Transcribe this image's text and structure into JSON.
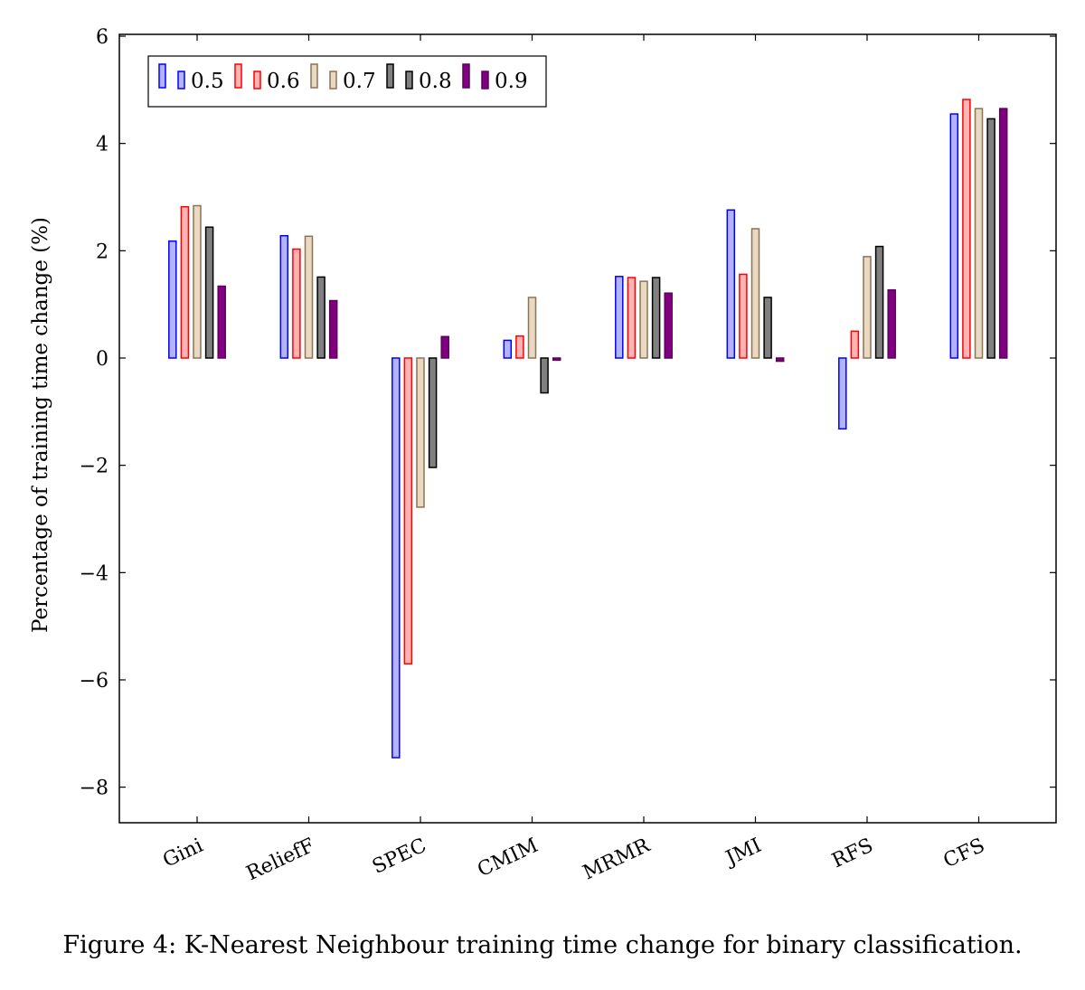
{
  "caption": "Figure 4: K-Nearest Neighbour training time change for binary classification.",
  "chart_data": {
    "type": "bar",
    "title": "",
    "xlabel": "",
    "ylabel": "Percentage of training time change (%)",
    "ylim": [
      -8.7,
      6
    ],
    "yticks": [
      -8,
      -6,
      -4,
      -2,
      0,
      2,
      4,
      6
    ],
    "ytick_labels": [
      "−8",
      "−6",
      "−4",
      "−2",
      "0",
      "2",
      "4",
      "6"
    ],
    "grid": false,
    "legend_position": "top-left",
    "categories": [
      "Gini",
      "ReliefF",
      "SPEC",
      "CMIM",
      "MRMR",
      "JMI",
      "RFS",
      "CFS"
    ],
    "series": [
      {
        "name": "0.5",
        "stroke": "#0000ff",
        "fill": "#b3b3ff",
        "values": [
          2.18,
          2.28,
          -7.45,
          0.33,
          1.52,
          2.76,
          -1.32,
          4.55
        ]
      },
      {
        "name": "0.6",
        "stroke": "#ff0000",
        "fill": "#ffb3b3",
        "values": [
          2.82,
          2.03,
          -5.7,
          0.41,
          1.5,
          1.56,
          0.5,
          4.82
        ]
      },
      {
        "name": "0.7",
        "stroke": "#8b7355",
        "fill": "#e9d9c2",
        "values": [
          2.84,
          2.27,
          -2.78,
          1.13,
          1.43,
          2.41,
          1.89,
          4.65
        ]
      },
      {
        "name": "0.8",
        "stroke": "#000000",
        "fill": "#808080",
        "values": [
          2.44,
          1.51,
          -2.04,
          -0.65,
          1.5,
          1.13,
          2.08,
          4.46
        ]
      },
      {
        "name": "0.9",
        "stroke": "#5c005c",
        "fill": "#800080",
        "values": [
          1.34,
          1.07,
          0.4,
          -0.04,
          1.21,
          -0.06,
          1.27,
          4.65
        ]
      }
    ]
  }
}
